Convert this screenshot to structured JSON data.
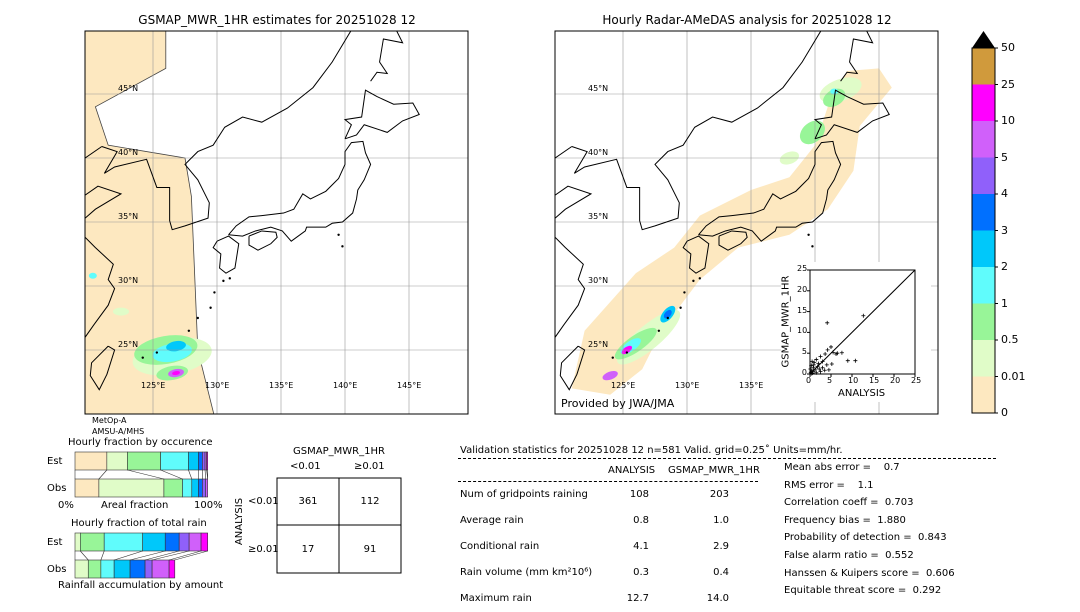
{
  "map_left": {
    "title": "GSMAP_MWR_1HR estimates for 20251028 12",
    "sensor_line1": "MetOp-A",
    "sensor_line2": "AMSU-A/MHS"
  },
  "map_right": {
    "title": "Hourly Radar-AMeDAS analysis for 20251028 12",
    "credit": "Provided by JWA/JMA"
  },
  "lat_labels": [
    "45°N",
    "40°N",
    "35°N",
    "30°N",
    "25°N"
  ],
  "lon_labels": [
    "125°E",
    "130°E",
    "135°E",
    "140°E",
    "145°E"
  ],
  "colorbar": {
    "levels": [
      "0",
      "0.01",
      "0.5",
      "1",
      "2",
      "3",
      "4",
      "5",
      "10",
      "25",
      "50"
    ],
    "colors": [
      "#fde8c0",
      "#e0fcc8",
      "#98f598",
      "#60fcfc",
      "#00c8fa",
      "#0070ff",
      "#9060fa",
      "#d060fa",
      "#ff00ff",
      "#d09a3c"
    ],
    "extend_color": "#000000"
  },
  "chart_data": [
    {
      "type": "scatter",
      "xlabel": "ANALYSIS",
      "ylabel": "GSMAP_MWR_1HR",
      "xlim": [
        0,
        25
      ],
      "ylim": [
        0,
        25
      ],
      "xticks": [
        "0",
        "5",
        "10",
        "15",
        "20",
        "25"
      ],
      "yticks": [
        "0",
        "5",
        "10",
        "15",
        "20",
        "25"
      ],
      "marker": "+",
      "diagonal": true,
      "points": [
        [
          12.7,
          14.0
        ],
        [
          4.1,
          12.3
        ],
        [
          5.0,
          6.5
        ],
        [
          4.2,
          5.8
        ],
        [
          5.5,
          5.2
        ],
        [
          6.2,
          4.8
        ],
        [
          6.5,
          5.0
        ],
        [
          7.6,
          5.1
        ],
        [
          9.0,
          3.2
        ],
        [
          10.8,
          3.2
        ],
        [
          3.6,
          4.8
        ],
        [
          2.5,
          4.2
        ],
        [
          1.5,
          3.5
        ],
        [
          3.0,
          3.0
        ],
        [
          4.0,
          2.2
        ],
        [
          5.2,
          2.4
        ],
        [
          2.0,
          2.5
        ],
        [
          1.0,
          2.8
        ],
        [
          0.5,
          3.0
        ],
        [
          0.3,
          2.0
        ],
        [
          0.8,
          1.5
        ],
        [
          1.2,
          1.0
        ],
        [
          2.2,
          1.2
        ],
        [
          3.0,
          1.5
        ],
        [
          0.4,
          0.8
        ],
        [
          0.2,
          0.4
        ],
        [
          0.6,
          0.2
        ],
        [
          1.5,
          0.3
        ],
        [
          2.5,
          0.6
        ],
        [
          3.5,
          0.9
        ],
        [
          0.1,
          1.2
        ],
        [
          0.9,
          2.2
        ],
        [
          1.8,
          1.8
        ],
        [
          4.5,
          1.0
        ],
        [
          0.3,
          0.1
        ],
        [
          0.7,
          0.6
        ]
      ]
    },
    {
      "type": "bar",
      "title": "Hourly fraction by occurence",
      "categories": [
        "Est",
        "Obs"
      ],
      "xlabel": "Areal fraction",
      "xtick_left": "0%",
      "xtick_right": "100%",
      "stacked_fractions": {
        "Est": [
          0.24,
          0.155,
          0.25,
          0.21,
          0.075,
          0.03,
          0.02,
          0.012,
          0.008
        ],
        "Obs": [
          0.18,
          0.49,
          0.14,
          0.07,
          0.05,
          0.03,
          0.025,
          0.015,
          0.0
        ]
      }
    },
    {
      "type": "bar",
      "title": "Hourly fraction of total rain",
      "categories": [
        "Est",
        "Obs"
      ],
      "xlabel": "Rainfall accumulation by amount",
      "stacked_fractions": {
        "Est": [
          0,
          0.04,
          0.18,
          0.29,
          0.17,
          0.105,
          0.075,
          0.09,
          0.05
        ],
        "Obs": [
          0,
          0.1,
          0.095,
          0.1,
          0.12,
          0.113,
          0.053,
          0.128,
          0.043
        ]
      }
    }
  ],
  "contingency": {
    "title": "GSMAP_MWR_1HR",
    "col_headers": [
      "<0.01",
      "≥0.01"
    ],
    "row_headers": [
      "<0.01",
      "≥0.01"
    ],
    "row_axis_label": "ANALYSIS",
    "cells": [
      [
        "361",
        "112"
      ],
      [
        "17",
        "91"
      ]
    ]
  },
  "stats": {
    "header": "Validation statistics for 20251028 12  n=581 Valid. grid=0.25˚ Units=mm/hr.",
    "col_analysis": "ANALYSIS",
    "col_gsmap": "GSMAP_MWR_1HR",
    "rows": [
      {
        "label": "Num of gridpoints raining",
        "analysis": "108",
        "gsmap": "203"
      },
      {
        "label": "Average rain",
        "analysis": "0.8",
        "gsmap": "1.0"
      },
      {
        "label": "Conditional rain",
        "analysis": "4.1",
        "gsmap": "2.9"
      },
      {
        "label": "Rain volume (mm km²10⁶)",
        "analysis": "0.3",
        "gsmap": "0.4"
      },
      {
        "label": "Maximum rain",
        "analysis": "12.7",
        "gsmap": "14.0"
      }
    ],
    "scores": [
      "Mean abs error =    0.7",
      "RMS error =    1.1",
      "Correlation coeff =  0.703",
      "Frequency bias =  1.880",
      "Probability of detection =  0.843",
      "False alarm ratio =  0.552",
      "Hanssen & Kuipers score =  0.606",
      "Equitable threat score =  0.292"
    ]
  }
}
